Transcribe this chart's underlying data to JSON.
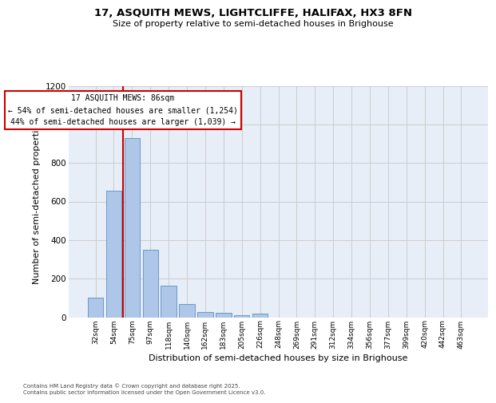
{
  "title_line1": "17, ASQUITH MEWS, LIGHTCLIFFE, HALIFAX, HX3 8FN",
  "title_line2": "Size of property relative to semi-detached houses in Brighouse",
  "xlabel": "Distribution of semi-detached houses by size in Brighouse",
  "ylabel": "Number of semi-detached properties",
  "categories": [
    "32sqm",
    "54sqm",
    "75sqm",
    "97sqm",
    "118sqm",
    "140sqm",
    "162sqm",
    "183sqm",
    "205sqm",
    "226sqm",
    "248sqm",
    "269sqm",
    "291sqm",
    "312sqm",
    "334sqm",
    "356sqm",
    "377sqm",
    "399sqm",
    "420sqm",
    "442sqm",
    "463sqm"
  ],
  "values": [
    100,
    655,
    930,
    350,
    165,
    70,
    27,
    22,
    12,
    18,
    0,
    0,
    0,
    0,
    0,
    0,
    0,
    0,
    0,
    0,
    0
  ],
  "bar_color": "#aec6e8",
  "bar_edge_color": "#5a8fc0",
  "grid_color": "#cccccc",
  "bg_color": "#e8eef8",
  "vline_x": 1.5,
  "vline_color": "#cc0000",
  "annotation_title": "17 ASQUITH MEWS: 86sqm",
  "annotation_left": "← 54% of semi-detached houses are smaller (1,254)",
  "annotation_right": "44% of semi-detached houses are larger (1,039) →",
  "annotation_box_color": "#cc0000",
  "ylim": [
    0,
    1200
  ],
  "yticks": [
    0,
    200,
    400,
    600,
    800,
    1000,
    1200
  ],
  "footer_line1": "Contains HM Land Registry data © Crown copyright and database right 2025.",
  "footer_line2": "Contains public sector information licensed under the Open Government Licence v3.0."
}
